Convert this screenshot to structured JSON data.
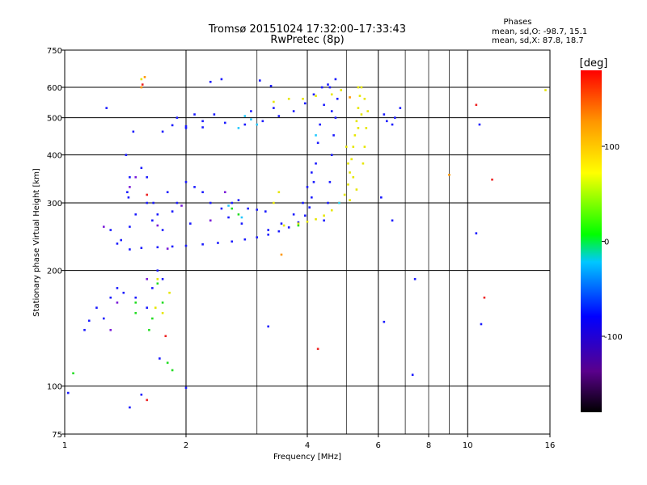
{
  "chart_data": {
    "type": "scatter",
    "title": "Tromsø 20151024 17:32:00–17:33:43",
    "subtitle": "RwPretec (8p)",
    "info": {
      "heading": "Phases",
      "line_o": "mean, sd,O: -98.7, 15.1",
      "line_x": "mean, sd,X:  87.8, 18.7"
    },
    "xlabel": "Frequency [MHz]",
    "ylabel": "Stationary phase Virtual Height [km]",
    "x_scale": "log",
    "y_scale": "log",
    "xlim": [
      1,
      16
    ],
    "ylim": [
      75,
      750
    ],
    "x_ticks": [
      1,
      2,
      4,
      6,
      8,
      10,
      16
    ],
    "x_tick_labels": [
      "1",
      "2",
      "4",
      "6",
      "8",
      "10",
      "16"
    ],
    "y_ticks": [
      75,
      100,
      200,
      300,
      400,
      500,
      600,
      750
    ],
    "y_tick_labels": [
      "75",
      "100",
      "200",
      "300",
      "400",
      "500",
      "600",
      "750"
    ],
    "x_grid_major": [
      2,
      4,
      6,
      10
    ],
    "x_grid_minor": [
      3,
      5,
      7,
      8,
      9
    ],
    "y_grid_major": [
      100,
      200,
      300,
      400,
      500,
      600
    ],
    "grid": true,
    "colorbar": {
      "label": "[deg]",
      "min": -180,
      "max": 180,
      "ticks": [
        100,
        0,
        -100
      ],
      "tick_labels": [
        "100",
        "0",
        "-100"
      ],
      "colors": [
        "#000000",
        "#5a008c",
        "#0000ff",
        "#00c8ff",
        "#00ff00",
        "#ffff00",
        "#ff9600",
        "#ff0000"
      ]
    },
    "series": [
      {
        "point_color": "#1a1aff",
        "points": [
          [
            1.45,
            227
          ],
          [
            1.55,
            229
          ],
          [
            1.7,
            230
          ],
          [
            1.85,
            231
          ],
          [
            2.0,
            232
          ],
          [
            2.2,
            234
          ],
          [
            2.4,
            236
          ],
          [
            2.6,
            238
          ],
          [
            2.8,
            241
          ],
          [
            3.0,
            244
          ],
          [
            3.2,
            248
          ],
          [
            3.4,
            253
          ],
          [
            3.6,
            259
          ],
          [
            3.8,
            267
          ],
          [
            3.95,
            278
          ],
          [
            4.05,
            292
          ],
          [
            4.1,
            310
          ],
          [
            4.15,
            340
          ],
          [
            4.2,
            380
          ],
          [
            4.25,
            430
          ],
          [
            4.3,
            480
          ],
          [
            4.4,
            540
          ],
          [
            4.55,
            600
          ],
          [
            4.7,
            630
          ],
          [
            3.2,
            255
          ],
          [
            3.45,
            265
          ],
          [
            3.7,
            280
          ],
          [
            3.9,
            300
          ],
          [
            4.0,
            330
          ],
          [
            4.1,
            360
          ],
          [
            4.4,
            270
          ],
          [
            4.5,
            300
          ],
          [
            4.55,
            340
          ],
          [
            4.6,
            400
          ],
          [
            4.65,
            450
          ],
          [
            4.7,
            500
          ],
          [
            4.75,
            560
          ],
          [
            4.6,
            520
          ],
          [
            1.75,
            460
          ],
          [
            1.85,
            478
          ],
          [
            2.0,
            475
          ],
          [
            2.2,
            472
          ],
          [
            2.5,
            485
          ],
          [
            2.8,
            480
          ],
          [
            3.1,
            490
          ],
          [
            3.4,
            505
          ],
          [
            3.7,
            520
          ],
          [
            3.95,
            545
          ],
          [
            4.15,
            575
          ],
          [
            4.35,
            600
          ],
          [
            4.5,
            610
          ],
          [
            1.9,
            500
          ],
          [
            2.1,
            510
          ],
          [
            2.35,
            510
          ],
          [
            2.9,
            520
          ],
          [
            3.3,
            530
          ],
          [
            2.0,
            470
          ],
          [
            2.2,
            490
          ],
          [
            2.3,
            620
          ],
          [
            2.45,
            630
          ],
          [
            3.25,
            605
          ],
          [
            3.05,
            625
          ],
          [
            1.6,
            300
          ],
          [
            1.7,
            280
          ],
          [
            1.8,
            320
          ],
          [
            1.9,
            300
          ],
          [
            2.0,
            340
          ],
          [
            2.1,
            330
          ],
          [
            2.2,
            320
          ],
          [
            2.3,
            300
          ],
          [
            1.65,
            270
          ],
          [
            1.85,
            285
          ],
          [
            1.75,
            255
          ],
          [
            2.05,
            265
          ],
          [
            2.45,
            290
          ],
          [
            2.6,
            300
          ],
          [
            2.7,
            305
          ],
          [
            2.85,
            290
          ],
          [
            3.0,
            288
          ],
          [
            3.15,
            285
          ],
          [
            2.55,
            275
          ],
          [
            2.75,
            265
          ],
          [
            1.12,
            140
          ],
          [
            1.15,
            148
          ],
          [
            1.2,
            160
          ],
          [
            1.25,
            150
          ],
          [
            1.3,
            170
          ],
          [
            1.35,
            180
          ],
          [
            1.4,
            175
          ],
          [
            1.5,
            170
          ],
          [
            1.6,
            160
          ],
          [
            1.65,
            180
          ],
          [
            1.7,
            200
          ],
          [
            1.75,
            190
          ],
          [
            1.38,
            240
          ],
          [
            1.45,
            260
          ],
          [
            1.35,
            235
          ],
          [
            1.3,
            255
          ],
          [
            1.5,
            280
          ],
          [
            1.42,
            400
          ],
          [
            1.45,
            350
          ],
          [
            1.43,
            320
          ],
          [
            1.44,
            310
          ],
          [
            1.48,
            460
          ],
          [
            1.55,
            370
          ],
          [
            1.6,
            350
          ],
          [
            1.66,
            300
          ],
          [
            6.2,
            510
          ],
          [
            6.3,
            490
          ],
          [
            6.5,
            480
          ],
          [
            6.6,
            500
          ],
          [
            6.8,
            530
          ],
          [
            6.1,
            310
          ],
          [
            6.5,
            270
          ],
          [
            7.4,
            190
          ],
          [
            7.3,
            107
          ],
          [
            6.2,
            147
          ],
          [
            10.5,
            250
          ],
          [
            10.8,
            145
          ],
          [
            10.7,
            480
          ],
          [
            3.2,
            143
          ],
          [
            2.0,
            99
          ],
          [
            1.55,
            95
          ],
          [
            1.45,
            88
          ],
          [
            1.02,
            96
          ],
          [
            1.27,
            530
          ],
          [
            1.72,
            118
          ]
        ]
      },
      {
        "point_color": "#e6e600",
        "points": [
          [
            3.5,
            262
          ],
          [
            3.8,
            265
          ],
          [
            4.0,
            268
          ],
          [
            4.2,
            272
          ],
          [
            4.4,
            278
          ],
          [
            4.6,
            287
          ],
          [
            4.8,
            300
          ],
          [
            4.95,
            315
          ],
          [
            5.05,
            335
          ],
          [
            5.1,
            360
          ],
          [
            5.15,
            390
          ],
          [
            5.2,
            420
          ],
          [
            5.25,
            450
          ],
          [
            5.3,
            490
          ],
          [
            5.35,
            530
          ],
          [
            5.4,
            570
          ],
          [
            5.45,
            600
          ],
          [
            5.5,
            380
          ],
          [
            5.55,
            420
          ],
          [
            5.6,
            470
          ],
          [
            5.65,
            520
          ],
          [
            5.55,
            560
          ],
          [
            5.45,
            510
          ],
          [
            5.35,
            470
          ],
          [
            5.0,
            420
          ],
          [
            5.05,
            380
          ],
          [
            5.2,
            350
          ],
          [
            5.3,
            325
          ],
          [
            5.1,
            305
          ],
          [
            3.3,
            550
          ],
          [
            3.6,
            560
          ],
          [
            3.9,
            560
          ],
          [
            4.2,
            570
          ],
          [
            4.6,
            575
          ],
          [
            4.85,
            590
          ],
          [
            5.35,
            600
          ],
          [
            1.55,
            630
          ],
          [
            3.4,
            320
          ],
          [
            3.3,
            300
          ],
          [
            1.7,
            190
          ],
          [
            1.68,
            160
          ],
          [
            1.75,
            155
          ],
          [
            1.82,
            175
          ],
          [
            15.6,
            590
          ]
        ]
      },
      {
        "point_color": "#22dd22",
        "points": [
          [
            1.5,
            165
          ],
          [
            1.7,
            185
          ],
          [
            1.75,
            165
          ],
          [
            1.65,
            150
          ],
          [
            1.62,
            140
          ],
          [
            1.8,
            115
          ],
          [
            1.85,
            110
          ],
          [
            1.05,
            108
          ],
          [
            1.5,
            155
          ],
          [
            2.6,
            290
          ],
          [
            2.7,
            280
          ],
          [
            3.8,
            262
          ]
        ]
      },
      {
        "point_color": "#22c8ff",
        "points": [
          [
            2.8,
            505
          ],
          [
            2.9,
            495
          ],
          [
            3.0,
            480
          ],
          [
            2.7,
            470
          ],
          [
            2.55,
            295
          ],
          [
            2.75,
            275
          ],
          [
            4.8,
            300
          ],
          [
            4.2,
            450
          ]
        ]
      },
      {
        "point_color": "#7a1ad9",
        "points": [
          [
            1.7,
            262
          ],
          [
            1.8,
            228
          ],
          [
            1.5,
            350
          ],
          [
            1.45,
            330
          ],
          [
            1.35,
            165
          ],
          [
            1.6,
            190
          ],
          [
            1.95,
            295
          ],
          [
            2.3,
            270
          ],
          [
            2.5,
            320
          ],
          [
            1.25,
            260
          ],
          [
            1.3,
            140
          ]
        ]
      },
      {
        "point_color": "#ee2222",
        "points": [
          [
            1.56,
            610
          ],
          [
            1.6,
            92
          ],
          [
            1.78,
            135
          ],
          [
            4.25,
            125
          ],
          [
            10.5,
            540
          ],
          [
            11.0,
            170
          ],
          [
            11.5,
            345
          ],
          [
            1.6,
            315
          ]
        ]
      },
      {
        "point_color": "#ff9600",
        "points": [
          [
            1.58,
            638
          ],
          [
            5.1,
            565
          ],
          [
            9.0,
            355
          ],
          [
            3.45,
            220
          ],
          [
            1.55,
            600
          ]
        ]
      }
    ]
  }
}
